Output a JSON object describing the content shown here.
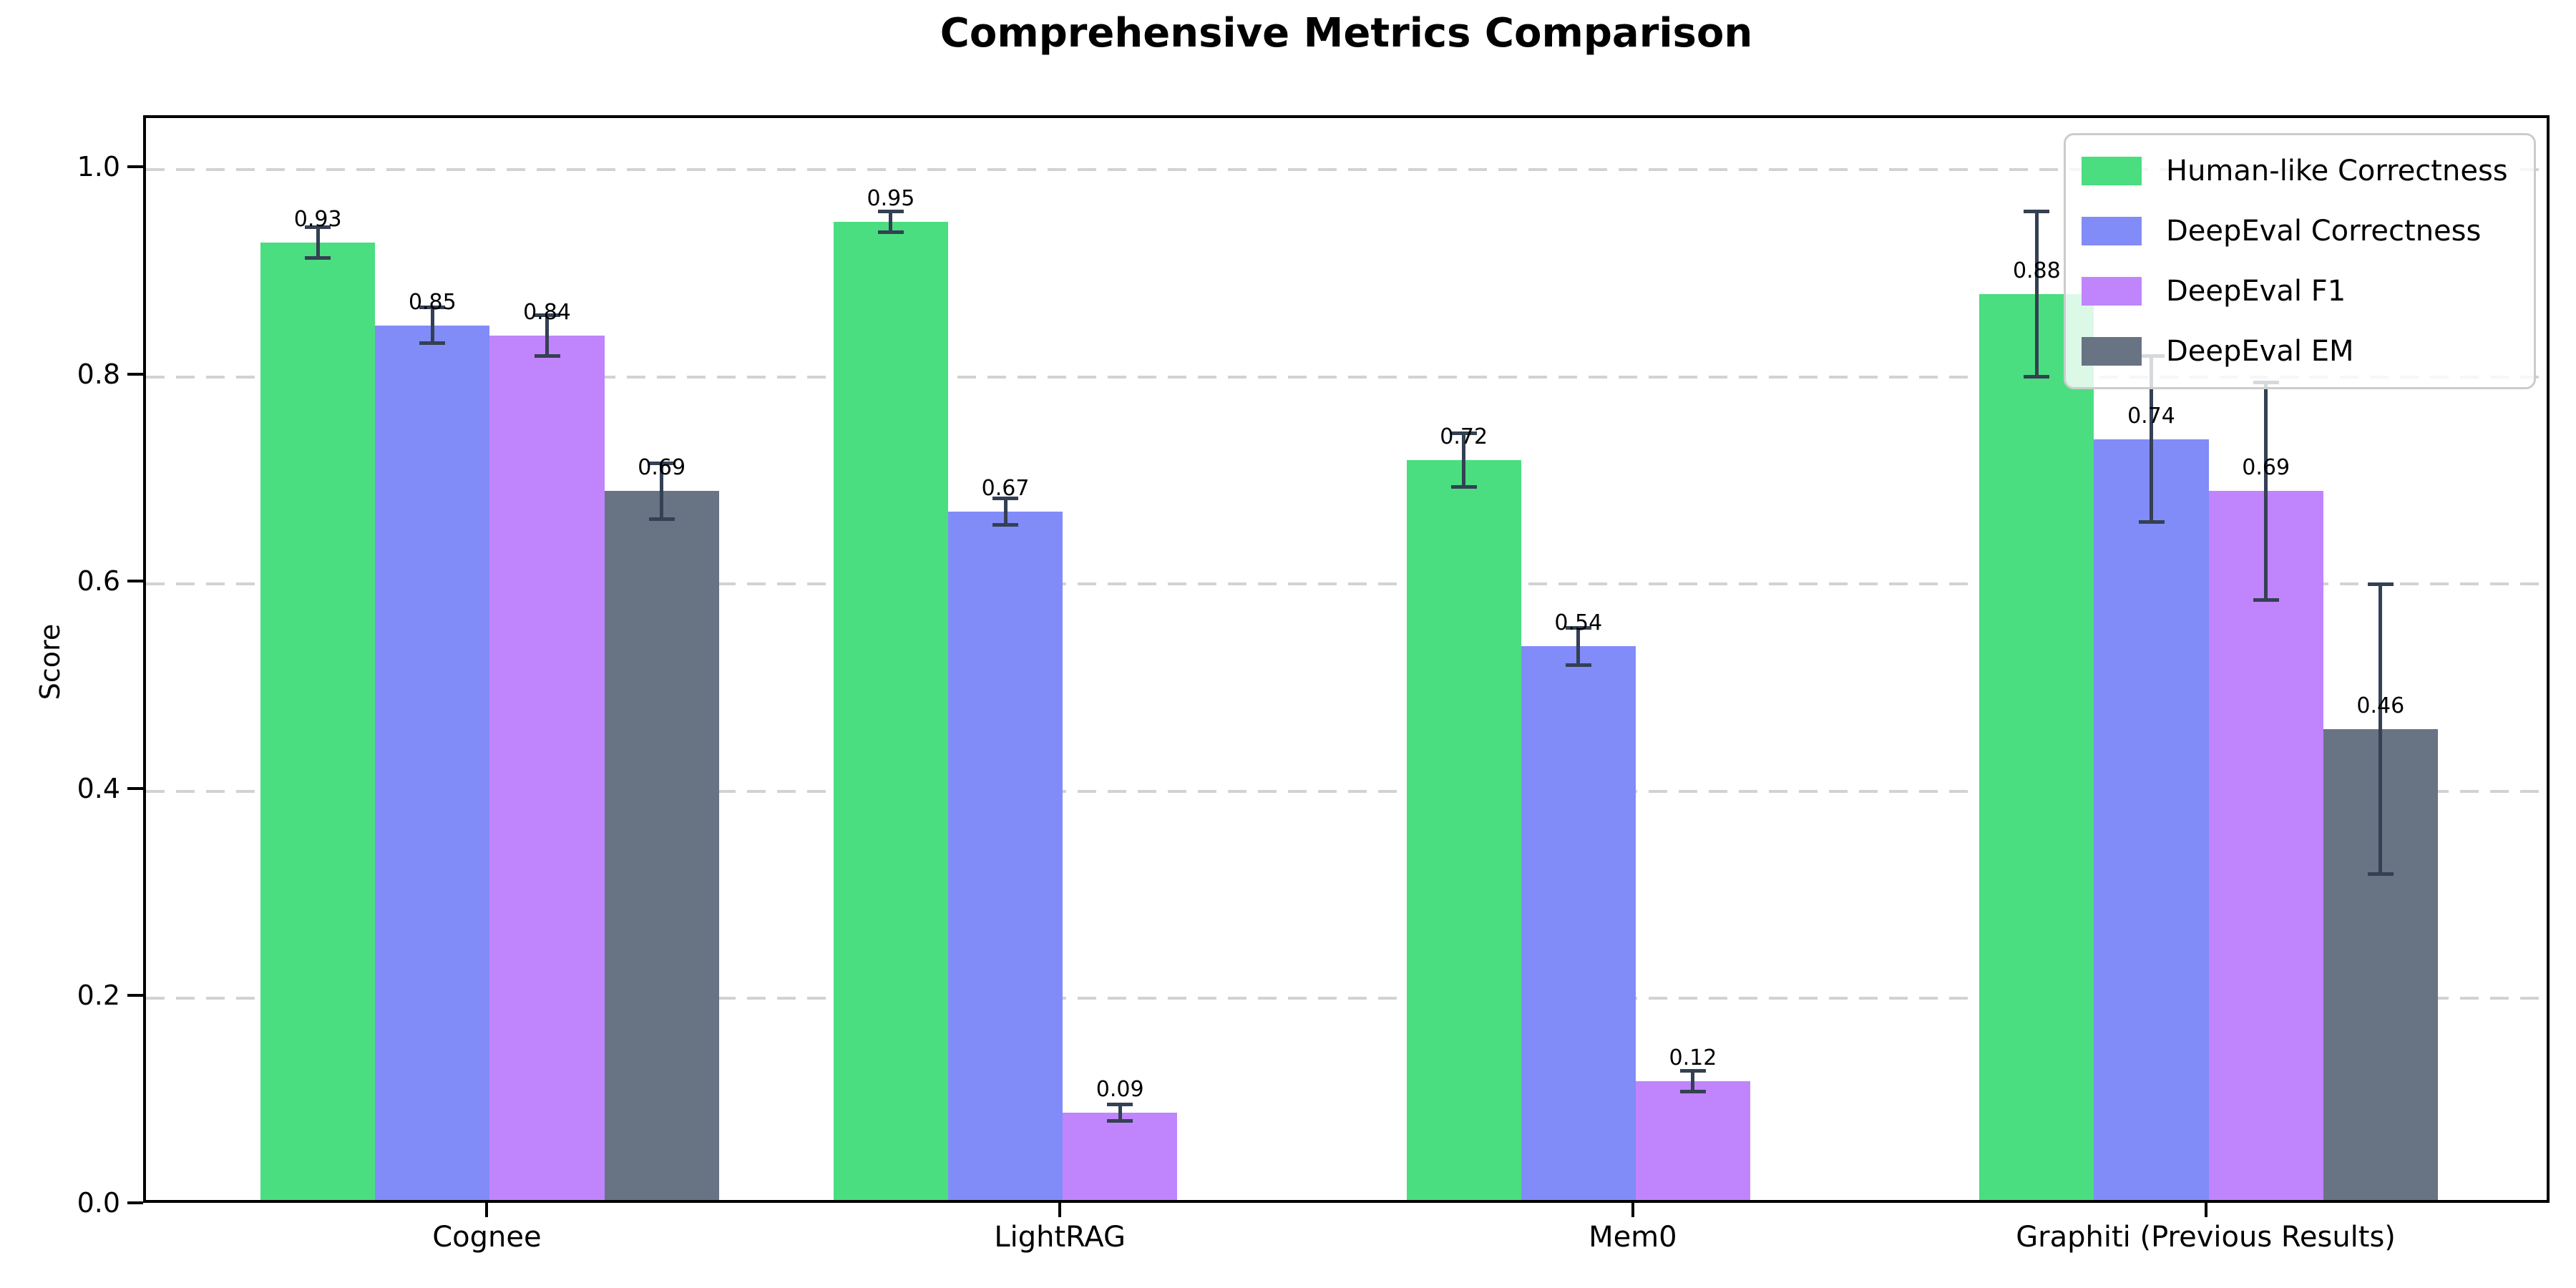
{
  "chart_data": {
    "type": "bar",
    "title": "Comprehensive Metrics Comparison",
    "xlabel": "",
    "ylabel": "Score",
    "categories": [
      "Cognee",
      "LightRAG",
      "Mem0",
      "Graphiti (Previous Results)"
    ],
    "series": [
      {
        "name": "Human-like Correctness",
        "color": "#4ade80",
        "values": [
          0.93,
          0.95,
          0.72,
          0.88
        ],
        "errors": [
          0.015,
          0.01,
          0.026,
          0.08
        ],
        "labels": [
          "0.93",
          "0.95",
          "0.72",
          "0.88"
        ]
      },
      {
        "name": "DeepEval Correctness",
        "color": "#818cf8",
        "values": [
          0.85,
          0.67,
          0.54,
          0.74
        ],
        "errors": [
          0.017,
          0.013,
          0.018,
          0.08
        ],
        "labels": [
          "0.85",
          "0.67",
          "0.54",
          "0.74"
        ]
      },
      {
        "name": "DeepEval F1",
        "color": "#c084fc",
        "values": [
          0.84,
          0.09,
          0.12,
          0.69
        ],
        "errors": [
          0.02,
          0.008,
          0.01,
          0.105
        ],
        "labels": [
          "0.84",
          "0.09",
          "0.12",
          "0.69"
        ]
      },
      {
        "name": "DeepEval EM",
        "color": "#687484",
        "values": [
          0.69,
          0.0,
          0.0,
          0.46
        ],
        "errors": [
          0.027,
          0.004,
          0.004,
          0.14
        ],
        "labels": [
          "0.69",
          null,
          null,
          "0.46"
        ]
      }
    ],
    "yticks": [
      "0.0",
      "0.2",
      "0.4",
      "0.6",
      "0.8",
      "1.0"
    ],
    "ytick_values": [
      0.0,
      0.2,
      0.4,
      0.6,
      0.8,
      1.0
    ],
    "ylim": [
      0,
      1.05
    ],
    "grid": "horizontal-dashed",
    "grid_color": "#d2d2d2",
    "error_bar_color": "#344053",
    "axis_color": "#000000",
    "background_color": "#ffffff",
    "legend_position": "upper right"
  }
}
